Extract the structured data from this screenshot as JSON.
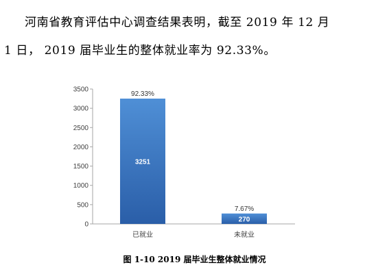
{
  "text": {
    "line1": "河南省教育评估中心调查结果表明，截至 2019 年 12 月",
    "line2": "1 日，  2019 届毕业生的整体就业率为 92.33%。"
  },
  "caption": "图 1-10    2019 届毕业生整体就业情况",
  "colors": {
    "bar_top": "#4f8fd6",
    "bar_bottom": "#2a5ea8",
    "axis": "#a6a6a6"
  },
  "chart_data": {
    "type": "bar",
    "categories": [
      "已就业",
      "未就业"
    ],
    "values": [
      3251,
      270
    ],
    "data_labels": [
      "3251",
      "270"
    ],
    "percent_labels": [
      "92.33%",
      "7.67%"
    ],
    "ylim": [
      0,
      3500
    ],
    "yticks": [
      0,
      500,
      1000,
      1500,
      2000,
      2500,
      3000,
      3500
    ],
    "grid": false,
    "legend": "none"
  }
}
